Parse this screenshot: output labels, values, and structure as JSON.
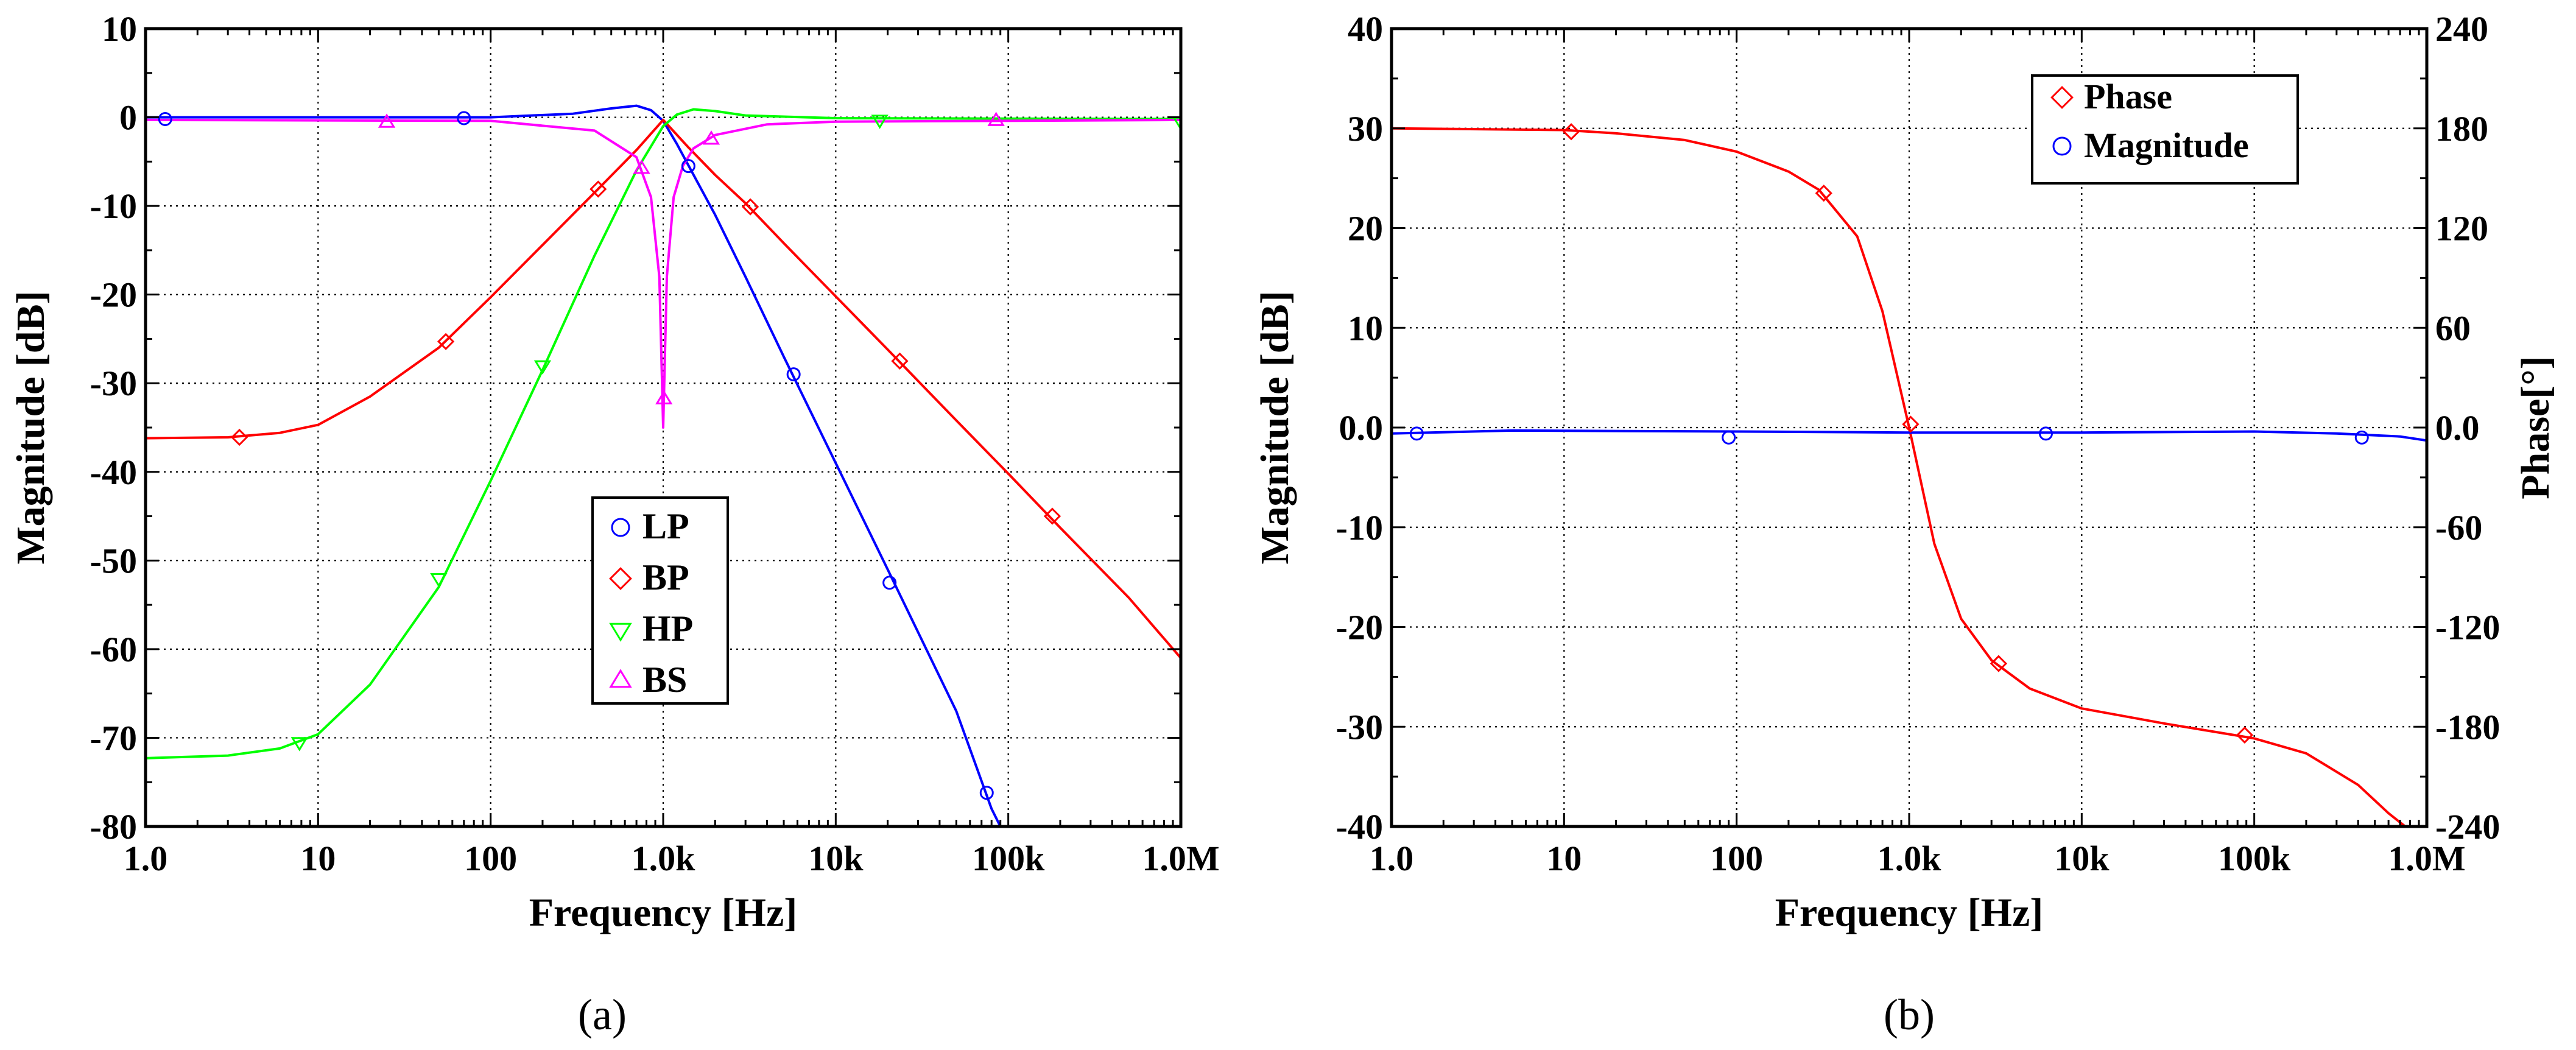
{
  "figure": {
    "panel_a_caption": "(a)",
    "panel_b_caption": "(b)"
  },
  "chart_data": [
    {
      "id": "a",
      "type": "line",
      "caption": "(a)",
      "title": "",
      "xlabel": "Frequency [Hz]",
      "ylabel": "Magnitude [dB]",
      "xscale": "log",
      "xlim": [
        1,
        1000000
      ],
      "ylim": [
        -80,
        10
      ],
      "xticks": [
        1,
        10,
        100,
        1000,
        10000,
        100000,
        1000000
      ],
      "xtick_labels": [
        "1.0",
        "10",
        "100",
        "1.0k",
        "10k",
        "100k",
        "1.0M"
      ],
      "yticks": [
        -80,
        -70,
        -60,
        -50,
        -40,
        -30,
        -20,
        -10,
        0,
        10
      ],
      "ytick_labels": [
        "-80",
        "-70",
        "-60",
        "-50",
        "-40",
        "-30",
        "-20",
        "-10",
        "0",
        "10"
      ],
      "grid": true,
      "legend_position": "center",
      "series": [
        {
          "name": "LP",
          "color": "#0000ff",
          "marker": "circle",
          "points": [
            [
              1,
              0
            ],
            [
              100,
              0
            ],
            [
              300,
              0.4
            ],
            [
              500,
              1.0
            ],
            [
              700,
              1.3
            ],
            [
              850,
              0.8
            ],
            [
              1000,
              -0.4
            ],
            [
              1200,
              -3
            ],
            [
              1500,
              -6.5
            ],
            [
              2000,
              -11
            ],
            [
              3000,
              -18
            ],
            [
              5000,
              -27
            ],
            [
              10000,
              -39
            ],
            [
              20000,
              -51
            ],
            [
              50000,
              -67
            ],
            [
              80000,
              -78
            ],
            [
              90000,
              -80
            ]
          ],
          "marker_points": [
            [
              1.3,
              -0.2
            ],
            [
              70,
              -0.1
            ],
            [
              1400,
              -5.5
            ],
            [
              5700,
              -29
            ],
            [
              20500,
              -52.5
            ],
            [
              75000,
              -76.2
            ]
          ]
        },
        {
          "name": "BP",
          "color": "#ff0000",
          "marker": "diamond",
          "points": [
            [
              1,
              -36.2
            ],
            [
              3,
              -36.1
            ],
            [
              6,
              -35.6
            ],
            [
              10,
              -34.7
            ],
            [
              20,
              -31.5
            ],
            [
              50,
              -26
            ],
            [
              100,
              -20.3
            ],
            [
              200,
              -14.4
            ],
            [
              400,
              -8.5
            ],
            [
              700,
              -3.7
            ],
            [
              1000,
              -0.3
            ],
            [
              1400,
              -3.4
            ],
            [
              2000,
              -6.5
            ],
            [
              3000,
              -9.7
            ],
            [
              5000,
              -14.2
            ],
            [
              10000,
              -20.2
            ],
            [
              20000,
              -26.2
            ],
            [
              50000,
              -34.2
            ],
            [
              100000,
              -40.2
            ],
            [
              200000,
              -46.3
            ],
            [
              500000,
              -54.2
            ],
            [
              1000000,
              -61
            ]
          ],
          "marker_points": [
            [
              3.5,
              -36.1
            ],
            [
              55,
              -25.3
            ],
            [
              420,
              -8.1
            ],
            [
              3200,
              -10.1
            ],
            [
              23500,
              -27.5
            ],
            [
              180000,
              -45
            ]
          ]
        },
        {
          "name": "HP",
          "color": "#00ff00",
          "marker": "triangle-down",
          "points": [
            [
              1,
              -72.3
            ],
            [
              3,
              -72
            ],
            [
              6,
              -71.2
            ],
            [
              10,
              -69.6
            ],
            [
              20,
              -64
            ],
            [
              50,
              -53
            ],
            [
              100,
              -41
            ],
            [
              200,
              -28.5
            ],
            [
              400,
              -15.6
            ],
            [
              700,
              -6
            ],
            [
              1000,
              -1
            ],
            [
              1200,
              0.3
            ],
            [
              1500,
              0.9
            ],
            [
              2000,
              0.7
            ],
            [
              3000,
              0.2
            ],
            [
              10000,
              -0.1
            ],
            [
              1000000,
              -0.2
            ]
          ],
          "marker_points": [
            [
              7.8,
              -70.5
            ],
            [
              50,
              -52
            ],
            [
              200,
              -28
            ],
            [
              18000,
              -0.3
            ],
            [
              1000000,
              -0.5
            ]
          ]
        },
        {
          "name": "BS",
          "color": "#ff00ff",
          "marker": "triangle-up",
          "points": [
            [
              1,
              -0.3
            ],
            [
              100,
              -0.4
            ],
            [
              400,
              -1.5
            ],
            [
              700,
              -4.5
            ],
            [
              850,
              -9
            ],
            [
              950,
              -18
            ],
            [
              1000,
              -35
            ],
            [
              1050,
              -18
            ],
            [
              1150,
              -9
            ],
            [
              1300,
              -5.5
            ],
            [
              1500,
              -3.5
            ],
            [
              2000,
              -2
            ],
            [
              4000,
              -0.8
            ],
            [
              10000,
              -0.5
            ],
            [
              1000000,
              -0.3
            ]
          ],
          "marker_points": [
            [
              25,
              -0.6
            ],
            [
              750,
              -5.8
            ],
            [
              1010,
              -31.8
            ],
            [
              1900,
              -2.5
            ],
            [
              85000,
              -0.4
            ]
          ]
        }
      ]
    },
    {
      "id": "b",
      "type": "line",
      "caption": "(b)",
      "title": "",
      "xlabel": "Frequency [Hz]",
      "ylabel": "Magnitude [dB]",
      "y2label": "Phase[°]",
      "xscale": "log",
      "xlim": [
        1,
        1000000
      ],
      "ylim": [
        -40,
        40
      ],
      "y2lim": [
        -240,
        240
      ],
      "xticks": [
        1,
        10,
        100,
        1000,
        10000,
        100000,
        1000000
      ],
      "xtick_labels": [
        "1.0",
        "10",
        "100",
        "1.0k",
        "10k",
        "100k",
        "1.0M"
      ],
      "yticks": [
        -40,
        -30,
        -20,
        -10,
        0,
        10,
        20,
        30,
        40
      ],
      "ytick_labels": [
        "-40",
        "-30",
        "-20",
        "-10",
        "0.0",
        "10",
        "20",
        "30",
        "40"
      ],
      "y2ticks": [
        -240,
        -180,
        -120,
        -60,
        0,
        60,
        120,
        180,
        240
      ],
      "y2tick_labels": [
        "-240",
        "-180",
        "-120",
        "-60",
        "0.0",
        "60",
        "120",
        "180",
        "240"
      ],
      "grid": true,
      "legend_position": "top-center",
      "series": [
        {
          "name": "Phase",
          "color": "#ff0000",
          "marker": "diamond",
          "axis": "right",
          "points": [
            [
              1,
              180
            ],
            [
              10,
              179
            ],
            [
              20,
              177
            ],
            [
              50,
              173
            ],
            [
              100,
              166
            ],
            [
              200,
              154
            ],
            [
              300,
              143
            ],
            [
              500,
              115
            ],
            [
              700,
              70
            ],
            [
              1000,
              0
            ],
            [
              1400,
              -70
            ],
            [
              2000,
              -115
            ],
            [
              3000,
              -140
            ],
            [
              5000,
              -157
            ],
            [
              10000,
              -169
            ],
            [
              30000,
              -178
            ],
            [
              100000,
              -187
            ],
            [
              200000,
              -196
            ],
            [
              400000,
              -215
            ],
            [
              600000,
              -232
            ],
            [
              750000,
              -240
            ]
          ],
          "marker_points": [
            [
              11,
              178
            ],
            [
              320,
              141
            ],
            [
              1020,
              2
            ],
            [
              3300,
              -142
            ],
            [
              88000,
              -185
            ]
          ]
        },
        {
          "name": "Magnitude",
          "color": "#0000ff",
          "marker": "circle",
          "axis": "left",
          "points": [
            [
              1,
              -0.6
            ],
            [
              5,
              -0.3
            ],
            [
              100,
              -0.4
            ],
            [
              1000,
              -0.5
            ],
            [
              10000,
              -0.5
            ],
            [
              100000,
              -0.4
            ],
            [
              300000,
              -0.6
            ],
            [
              700000,
              -0.9
            ],
            [
              1000000,
              -1.3
            ]
          ],
          "marker_points": [
            [
              1.4,
              -0.6
            ],
            [
              90,
              -1
            ],
            [
              6200,
              -0.6
            ],
            [
              420000,
              -1
            ]
          ]
        }
      ]
    }
  ]
}
